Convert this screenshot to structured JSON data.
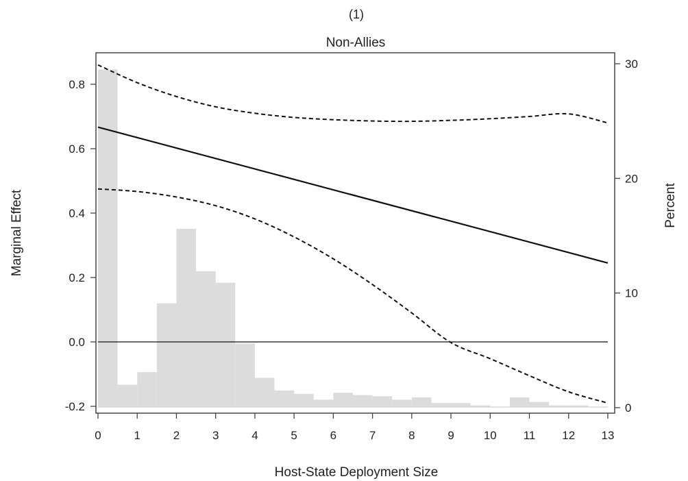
{
  "panel_label": "(1)",
  "chart_data": {
    "type": "line",
    "title": "Non-Allies",
    "xlabel": "Host-State Deployment Size",
    "ylabel": "Marginal Effect",
    "y2label": "Percent",
    "xlim": [
      0,
      13
    ],
    "ylim": [
      -0.2,
      0.9
    ],
    "y2lim": [
      0,
      30
    ],
    "x_ticks": [
      0,
      1,
      2,
      3,
      4,
      5,
      6,
      7,
      8,
      9,
      10,
      11,
      12,
      13
    ],
    "y_ticks": [
      "-0.2",
      "0.0",
      "0.2",
      "0.4",
      "0.6",
      "0.8"
    ],
    "y2_ticks": [
      0,
      10,
      20,
      30
    ],
    "reference_line_y": 0.0,
    "series": [
      {
        "role": "estimate",
        "style": "solid",
        "x": [
          0,
          13
        ],
        "y": [
          0.667,
          0.245
        ]
      },
      {
        "role": "upper",
        "style": "dashed",
        "x": [
          0,
          1,
          2,
          3,
          4,
          5,
          6,
          7,
          8,
          9,
          10,
          11,
          12,
          13
        ],
        "y": [
          0.86,
          0.805,
          0.762,
          0.73,
          0.71,
          0.697,
          0.69,
          0.686,
          0.685,
          0.688,
          0.693,
          0.7,
          0.708,
          0.68
        ]
      },
      {
        "role": "lower",
        "style": "dashed",
        "x": [
          0,
          1,
          2,
          3,
          4,
          5,
          6,
          7,
          8,
          9,
          10,
          11,
          12,
          13
        ],
        "y": [
          0.475,
          0.467,
          0.45,
          0.423,
          0.382,
          0.326,
          0.258,
          0.178,
          0.09,
          -0.002,
          -0.052,
          -0.105,
          -0.155,
          -0.19
        ]
      }
    ],
    "histogram": {
      "axis": "y2",
      "bin_width": 0.5,
      "bins_start": [
        0,
        0.5,
        1,
        1.5,
        2,
        2.5,
        3,
        3.5,
        4,
        4.5,
        5,
        5.5,
        6,
        6.5,
        7,
        7.5,
        8,
        8.5,
        9,
        9.5,
        10,
        10.5,
        11,
        11.5,
        12,
        12.5
      ],
      "percent": [
        29.5,
        2.0,
        3.1,
        9.1,
        15.6,
        11.9,
        10.9,
        5.6,
        2.6,
        1.5,
        1.2,
        0.7,
        1.3,
        1.1,
        1.0,
        0.7,
        0.9,
        0.4,
        0.4,
        0.2,
        0.1,
        0.9,
        0.5,
        0.2,
        0.2,
        0.1
      ],
      "color": "#dcdcdc"
    },
    "colors": {
      "line": "#111111",
      "axis": "#444444"
    },
    "grid": false
  }
}
